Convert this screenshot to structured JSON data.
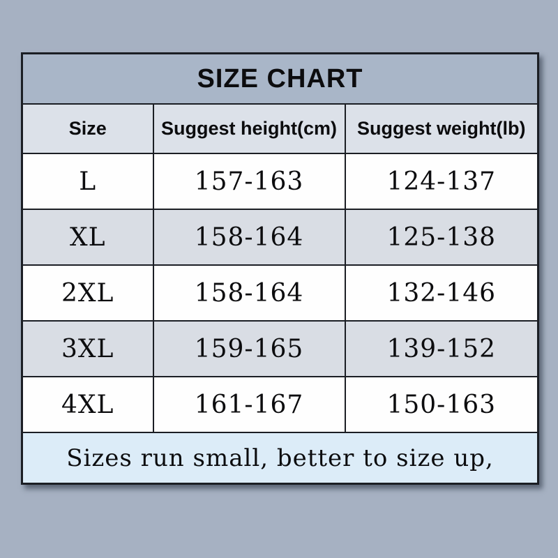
{
  "table": {
    "title": "SIZE CHART",
    "headers": [
      "Size",
      "Suggest height(cm)",
      "Suggest weight(lb)"
    ],
    "rows": [
      {
        "cells": [
          "L",
          "157-163",
          "124-137"
        ]
      },
      {
        "cells": [
          "XL",
          "158-164",
          "125-138"
        ]
      },
      {
        "cells": [
          "2XL",
          "158-164",
          "132-146"
        ]
      },
      {
        "cells": [
          "3XL",
          "159-165",
          "139-152"
        ]
      },
      {
        "cells": [
          "4XL",
          "161-167",
          "150-163"
        ]
      }
    ],
    "footer_note": "Sizes run small, better to size up,"
  },
  "chart_data": {
    "type": "table",
    "title": "SIZE CHART",
    "columns": [
      "Size",
      "Suggest height(cm)",
      "Suggest weight(lb)"
    ],
    "rows": [
      [
        "L",
        "157-163",
        "124-137"
      ],
      [
        "XL",
        "158-164",
        "125-138"
      ],
      [
        "2XL",
        "158-164",
        "132-146"
      ],
      [
        "3XL",
        "159-165",
        "139-152"
      ],
      [
        "4XL",
        "161-167",
        "150-163"
      ]
    ],
    "footer": "Sizes run small, better to size up,"
  },
  "colors": {
    "page_background": "#a6b1c2",
    "title_band_bg": "#a9b6c8",
    "header_row_bg": "#dce1e9",
    "row_white_bg": "#fefefe",
    "row_shaded_bg": "#d9dde4",
    "footer_bg": "#dcecf8",
    "border": "#1b1e24",
    "text": "#0c0c0e"
  }
}
